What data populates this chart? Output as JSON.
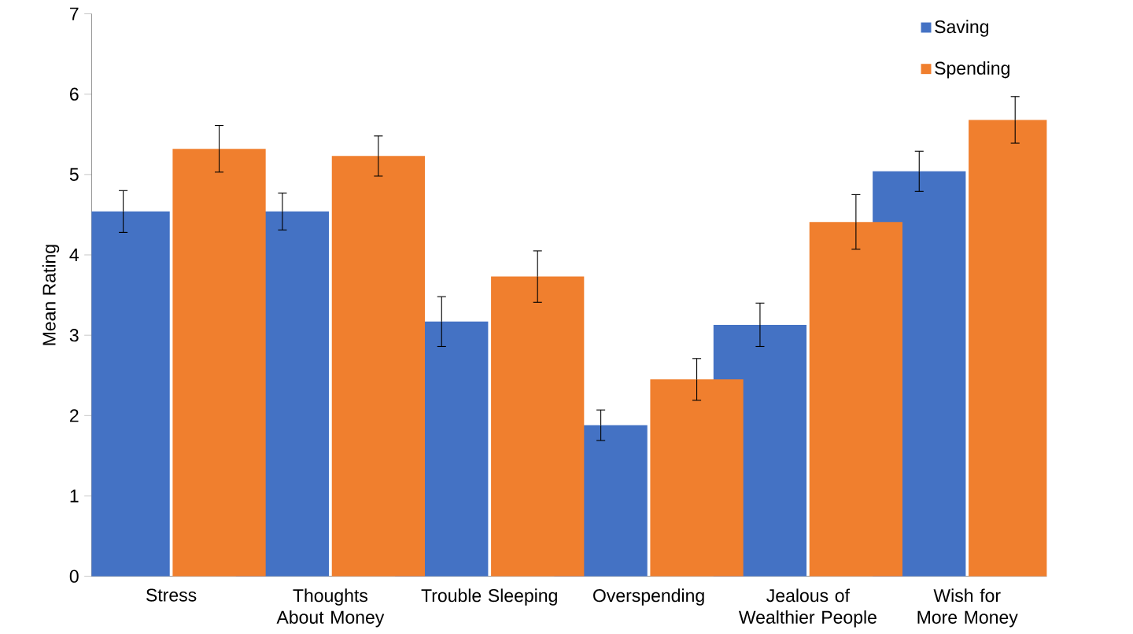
{
  "chart_data": {
    "type": "bar",
    "ylabel": "Mean Rating",
    "categories": [
      "Stress",
      "Thoughts About Money",
      "Trouble Sleeping",
      "Overspending",
      "Jealous of Wealthier People",
      "Wish for More Money"
    ],
    "series": [
      {
        "name": "Saving",
        "color": "#4472c4",
        "values": [
          4.54,
          4.54,
          3.17,
          1.88,
          3.13,
          5.04
        ],
        "errors": [
          0.26,
          0.23,
          0.31,
          0.19,
          0.27,
          0.25
        ]
      },
      {
        "name": "Spending",
        "color": "#f07f2e",
        "values": [
          5.32,
          5.23,
          3.73,
          2.45,
          4.41,
          5.68
        ],
        "errors": [
          0.29,
          0.25,
          0.32,
          0.26,
          0.34,
          0.29
        ]
      }
    ],
    "ylim": [
      0,
      7
    ],
    "yticks": [
      0,
      1,
      2,
      3,
      4,
      5,
      6,
      7
    ],
    "grid": false,
    "legend": "top right"
  }
}
